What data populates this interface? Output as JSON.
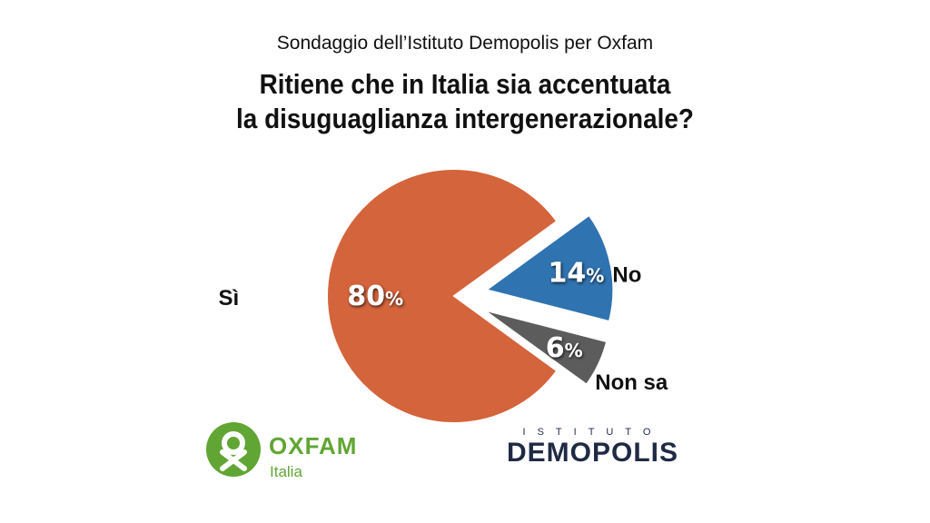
{
  "header": {
    "subtitle": "Sondaggio dell’Istituto Demopolis per Oxfam",
    "title_line1": "Ritiene che in Italia sia accentuata",
    "title_line2": "la disuguaglianza intergenerazionale?"
  },
  "chart_data": {
    "type": "pie",
    "title": "Ritiene che in Italia sia accentuata la disuguaglianza intergenerazionale?",
    "categories": [
      "Sì",
      "No",
      "Non sa"
    ],
    "values": [
      80,
      14,
      6
    ],
    "value_labels": [
      "80",
      "14",
      "6"
    ],
    "unit": "%",
    "colors": [
      "#d4643b",
      "#2f73b0",
      "#5c5c5c"
    ],
    "exploded": [
      "No",
      "Non sa"
    ],
    "legend": "none"
  },
  "logos": {
    "oxfam": {
      "name": "OXFAM",
      "sub": "Italia",
      "color": "#61a534"
    },
    "demopolis": {
      "top": "ISTITUTO",
      "name": "DEMOPOLIS",
      "color": "#1f2a44",
      "accent": "#e7a33a"
    }
  }
}
